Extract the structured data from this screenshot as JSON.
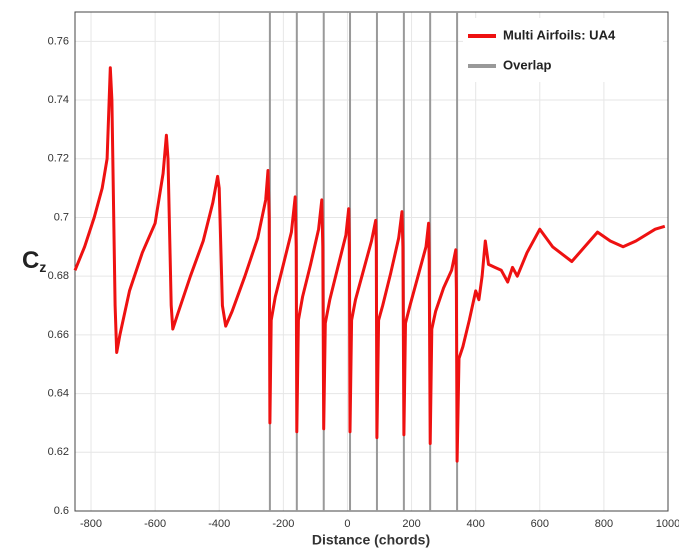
{
  "chart_data": {
    "type": "line",
    "xlabel": "Distance (chords)",
    "ylabel": "C",
    "ylabel_subscript": "z",
    "xlim": [
      -850,
      1000
    ],
    "xticks": [
      -800,
      -600,
      -400,
      -200,
      0,
      200,
      400,
      600,
      800,
      1000
    ],
    "ylim": [
      0.6,
      0.77
    ],
    "yticks": [
      0.6,
      0.62,
      0.64,
      0.66,
      0.68,
      0.7,
      0.72,
      0.74,
      0.76
    ],
    "grid": true,
    "legend": "upper right",
    "series": [
      {
        "name": "Multi Airfoils: UA4",
        "color": "#ee1111",
        "x": [
          -850,
          -820,
          -790,
          -765,
          -750,
          -740,
          -735,
          -725,
          -720,
          -710,
          -680,
          -640,
          -600,
          -575,
          -565,
          -560,
          -550,
          -545,
          -530,
          -490,
          -450,
          -420,
          -405,
          -400,
          -390,
          -380,
          -360,
          -320,
          -280,
          -255,
          -248,
          -244,
          -242,
          -238,
          -225,
          -200,
          -175,
          -163,
          -160,
          -158,
          -153,
          -140,
          -115,
          -90,
          -80,
          -77,
          -74,
          -69,
          -55,
          -30,
          -5,
          4,
          6,
          8,
          13,
          25,
          50,
          75,
          88,
          90,
          92,
          97,
          110,
          135,
          160,
          170,
          173,
          176,
          181,
          195,
          220,
          245,
          253,
          255,
          258,
          263,
          275,
          300,
          325,
          338,
          340,
          342,
          348,
          360,
          380,
          400,
          410,
          420,
          430,
          440,
          460,
          480,
          500,
          515,
          530,
          560,
          600,
          640,
          700,
          740,
          780,
          820,
          860,
          900,
          960,
          990
        ],
        "values": [
          0.682,
          0.69,
          0.7,
          0.71,
          0.72,
          0.751,
          0.74,
          0.67,
          0.654,
          0.66,
          0.675,
          0.688,
          0.698,
          0.715,
          0.728,
          0.72,
          0.67,
          0.662,
          0.667,
          0.68,
          0.692,
          0.705,
          0.714,
          0.71,
          0.67,
          0.663,
          0.668,
          0.68,
          0.693,
          0.706,
          0.716,
          0.7,
          0.63,
          0.665,
          0.673,
          0.684,
          0.695,
          0.707,
          0.69,
          0.627,
          0.665,
          0.673,
          0.684,
          0.696,
          0.706,
          0.69,
          0.628,
          0.664,
          0.672,
          0.683,
          0.694,
          0.703,
          0.69,
          0.627,
          0.665,
          0.672,
          0.682,
          0.692,
          0.699,
          0.69,
          0.625,
          0.665,
          0.67,
          0.681,
          0.693,
          0.702,
          0.69,
          0.626,
          0.664,
          0.67,
          0.68,
          0.69,
          0.698,
          0.685,
          0.623,
          0.662,
          0.668,
          0.676,
          0.682,
          0.689,
          0.675,
          0.617,
          0.652,
          0.656,
          0.665,
          0.675,
          0.672,
          0.68,
          0.692,
          0.684,
          0.683,
          0.682,
          0.678,
          0.683,
          0.68,
          0.688,
          0.696,
          0.69,
          0.685,
          0.69,
          0.695,
          0.692,
          0.69,
          0.692,
          0.696,
          0.697
        ]
      }
    ],
    "vlines": {
      "name": "Overlap",
      "color": "#999999",
      "x": [
        -242,
        -158,
        -74,
        8,
        92,
        176,
        258,
        342
      ]
    }
  }
}
